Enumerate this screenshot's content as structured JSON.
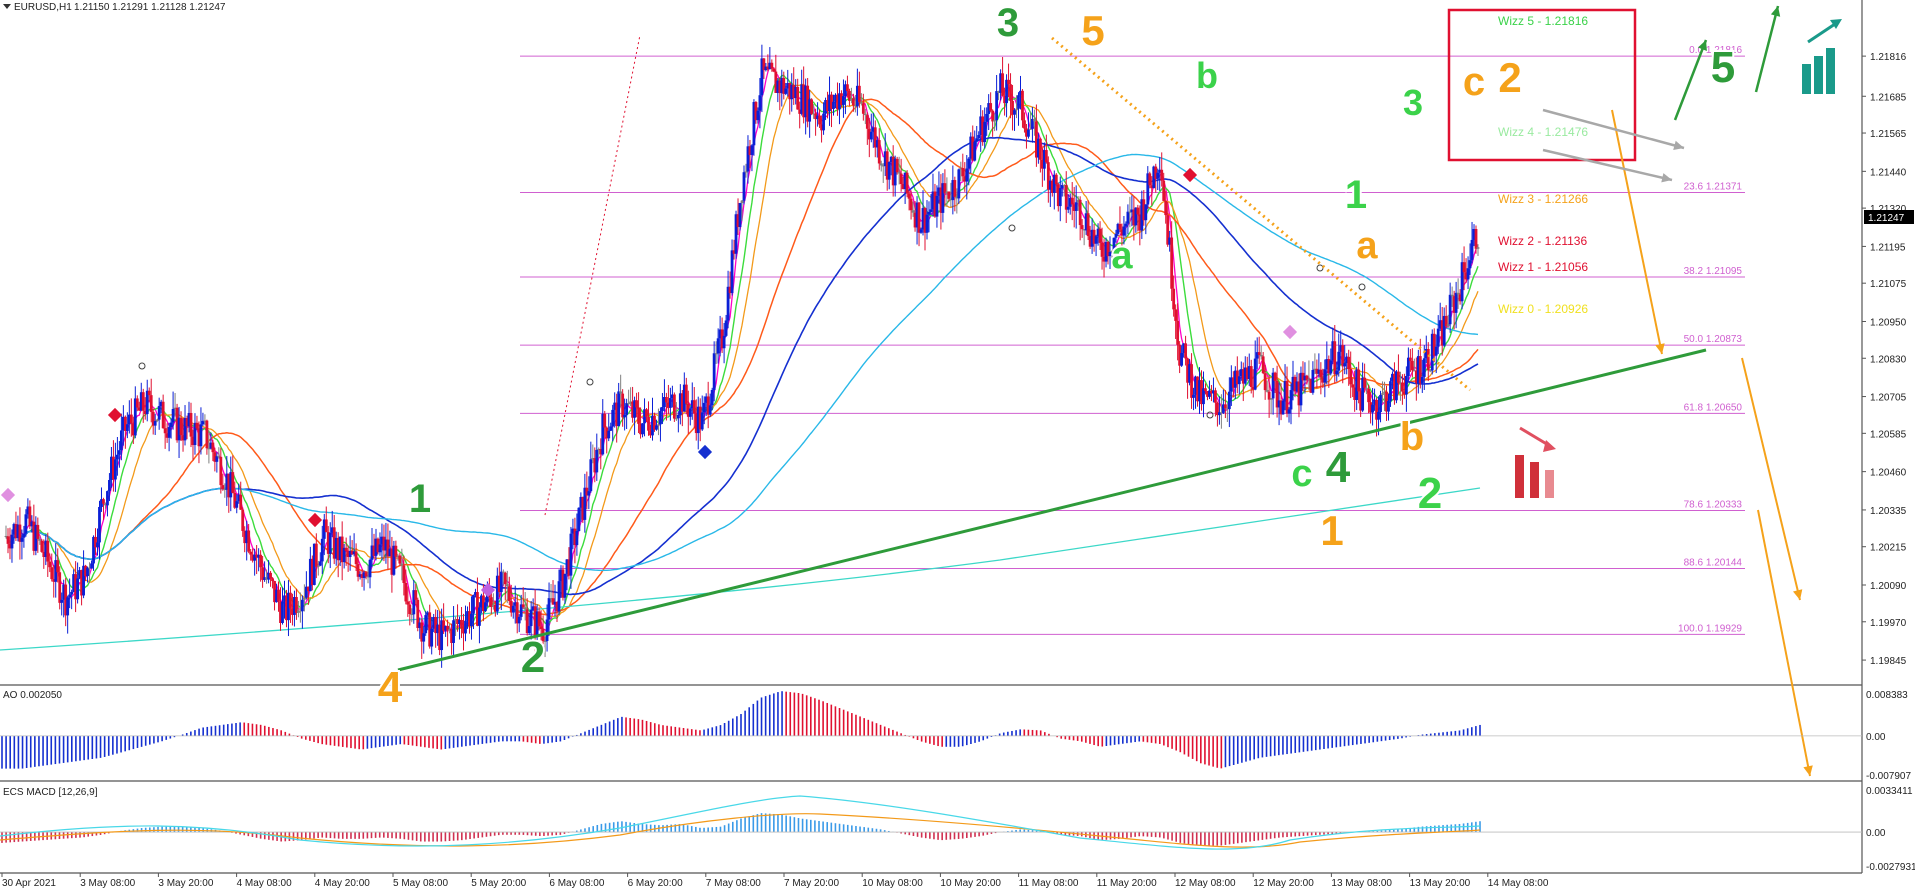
{
  "header": {
    "symbol": "EURUSD,H1",
    "ohlc": "1.21150 1.21291 1.21128 1.21247"
  },
  "colors": {
    "bull": "#0a1fd6",
    "bear": "#e01030",
    "doji": "#808080",
    "green_wave": "#2e9b3a",
    "orange_wave": "#f5a21a",
    "fib": "#d060d0",
    "trendline": "#2e9b3a"
  },
  "chart_data": [
    {
      "type": "candlestick",
      "title": "",
      "price_axis_ticks": [
        "1.21816",
        "1.21685",
        "1.21565",
        "1.21440",
        "1.21320",
        "1.21195",
        "1.21075",
        "1.20950",
        "1.20830",
        "1.20705",
        "1.20585",
        "1.20460",
        "1.20335",
        "1.20215",
        "1.20090",
        "1.19970",
        "1.19845"
      ],
      "current_price": "1.21247",
      "ylim": [
        1.1978,
        1.2196
      ],
      "time_axis_ticks": [
        "30 Apr 2021",
        "3 May 08:00",
        "3 May 20:00",
        "4 May 08:00",
        "4 May 20:00",
        "5 May 08:00",
        "5 May 20:00",
        "6 May 08:00",
        "6 May 20:00",
        "7 May 08:00",
        "7 May 20:00",
        "10 May 08:00",
        "10 May 20:00",
        "11 May 08:00",
        "11 May 20:00",
        "12 May 08:00",
        "12 May 20:00",
        "13 May 08:00",
        "13 May 20:00",
        "14 May 08:00"
      ],
      "price_path": [
        1.2025,
        1.203,
        1.2018,
        1.2005,
        1.2012,
        1.204,
        1.206,
        1.2068,
        1.2063,
        1.206,
        1.2058,
        1.2045,
        1.2028,
        1.2012,
        1.2,
        1.2008,
        1.2025,
        1.2018,
        1.2015,
        1.2022,
        1.201,
        1.1995,
        1.1992,
        1.1998,
        1.2003,
        1.2008,
        1.2,
        1.1995,
        1.201,
        1.2035,
        1.206,
        1.2068,
        1.2062,
        1.2066,
        1.207,
        1.2062,
        1.209,
        1.214,
        1.2175,
        1.2172,
        1.2168,
        1.2162,
        1.217,
        1.2165,
        1.215,
        1.214,
        1.2128,
        1.2135,
        1.2142,
        1.2158,
        1.217,
        1.2165,
        1.215,
        1.2135,
        1.2132,
        1.2118,
        1.2125,
        1.213,
        1.215,
        1.2085,
        1.207,
        1.2068,
        1.2075,
        1.208,
        1.207,
        1.2072,
        1.2078,
        1.2085,
        1.2072,
        1.2068,
        1.2075,
        1.208,
        1.2088,
        1.2105,
        1.2125
      ],
      "fib_levels": [
        {
          "label": "0.0 1.21816",
          "price": 1.21816
        },
        {
          "label": "23.6 1.21371",
          "price": 1.21371
        },
        {
          "label": "38.2 1.21095",
          "price": 1.21095
        },
        {
          "label": "50.0 1.20873",
          "price": 1.20873
        },
        {
          "label": "61.8 1.20650",
          "price": 1.2065
        },
        {
          "label": "78.6 1.20333",
          "price": 1.20333
        },
        {
          "label": "88.6 1.20144",
          "price": 1.20144
        },
        {
          "label": "100.0 1.19929",
          "price": 1.19929
        }
      ],
      "wizz_levels": [
        {
          "label": "Wizz 5 - 1.21816",
          "color": "#3bd24a"
        },
        {
          "label": "Wizz 4 - 1.21476",
          "color": "#9aeaa0"
        },
        {
          "label": "Wizz 3 - 1.21266",
          "color": "#f5a21a"
        },
        {
          "label": "Wizz 2 - 1.21136",
          "color": "#e01030"
        },
        {
          "label": "Wizz 1 - 1.21056",
          "color": "#e01030"
        },
        {
          "label": "Wizz 0 - 1.20926",
          "color": "#f0e020"
        }
      ],
      "wave_labels": [
        {
          "text": "1",
          "color": "#2e9b3a"
        },
        {
          "text": "2",
          "color": "#2e9b3a"
        },
        {
          "text": "3",
          "color": "#2e9b3a"
        },
        {
          "text": "4",
          "color": "#f5a21a"
        },
        {
          "text": "5",
          "color": "#f5a21a"
        },
        {
          "text": "b",
          "color": "#3bd24a"
        },
        {
          "text": "a",
          "color": "#3bd24a"
        },
        {
          "text": "1",
          "color": "#3bd24a"
        },
        {
          "text": "a",
          "color": "#f5a21a"
        },
        {
          "text": "c",
          "color": "#3bd24a"
        },
        {
          "text": "4",
          "color": "#2e9b3a"
        },
        {
          "text": "b",
          "color": "#f5a21a"
        },
        {
          "text": "2",
          "color": "#3bd24a"
        },
        {
          "text": "1",
          "color": "#f5a21a"
        },
        {
          "text": "3",
          "color": "#3bd24a"
        },
        {
          "text": "c",
          "color": "#f5a21a"
        },
        {
          "text": "2",
          "color": "#f5a21a"
        },
        {
          "text": "5",
          "color": "#2e9b3a"
        }
      ]
    },
    {
      "type": "bar",
      "title": "AO 0.002050",
      "axis_ticks": [
        "0.008383",
        "0.00",
        "-0.007907"
      ],
      "ylim": [
        -0.0079,
        0.0084
      ],
      "values": [
        -0.006,
        -0.006,
        -0.0055,
        -0.005,
        -0.0045,
        -0.004,
        -0.003,
        -0.002,
        -0.001,
        0.0002,
        0.0015,
        0.002,
        0.0025,
        0.002,
        0.001,
        -0.0005,
        -0.0015,
        -0.002,
        -0.0025,
        -0.002,
        -0.0015,
        -0.002,
        -0.0025,
        -0.002,
        -0.0015,
        -0.001,
        -0.001,
        -0.0015,
        -0.001,
        0.0005,
        0.002,
        0.0035,
        0.003,
        0.002,
        0.0015,
        0.001,
        0.002,
        0.004,
        0.007,
        0.0082,
        0.0078,
        0.0065,
        0.005,
        0.0035,
        0.002,
        0.0005,
        -0.001,
        -0.002,
        -0.002,
        -0.001,
        0.0005,
        0.0012,
        0.001,
        -0.0005,
        -0.001,
        -0.002,
        -0.0015,
        -0.001,
        -0.0015,
        -0.003,
        -0.005,
        -0.006,
        -0.005,
        -0.004,
        -0.0035,
        -0.003,
        -0.0025,
        -0.002,
        -0.0015,
        -0.001,
        -0.0005,
        0.0002,
        0.0006,
        0.001,
        0.002
      ]
    },
    {
      "type": "bar",
      "title": "ECS MACD [12,26,9]",
      "axis_ticks": [
        "0.0033411",
        "0.00",
        "-0.0027931"
      ],
      "ylim": [
        -0.0028,
        0.0034
      ],
      "values": [
        -0.0008,
        -0.0007,
        -0.0006,
        -0.0005,
        -0.0004,
        -0.0002,
        0.0001,
        0.0003,
        0.0004,
        0.0004,
        0.0003,
        0.0001,
        -0.0002,
        -0.0005,
        -0.0007,
        -0.0006,
        -0.0004,
        -0.0005,
        -0.0005,
        -0.0004,
        -0.0005,
        -0.0007,
        -0.0007,
        -0.0006,
        -0.0004,
        -0.0002,
        -0.0002,
        -0.0003,
        -0.0002,
        0.0002,
        0.0006,
        0.0008,
        0.0006,
        0.0005,
        0.0006,
        0.0003,
        0.0004,
        0.001,
        0.0014,
        0.0013,
        0.001,
        0.0008,
        0.0006,
        0.0004,
        0.0002,
        -0.0001,
        -0.0004,
        -0.0006,
        -0.0005,
        -0.0003,
        0.0,
        0.0002,
        0.0001,
        -0.0002,
        -0.0003,
        -0.0006,
        -0.0005,
        -0.0003,
        -0.0004,
        -0.0008,
        -0.001,
        -0.001,
        -0.0008,
        -0.0006,
        -0.0004,
        -0.0003,
        -0.0002,
        -0.0001,
        0.0,
        0.0001,
        0.0002,
        0.0004,
        0.0005,
        0.0006,
        0.0008
      ]
    }
  ]
}
